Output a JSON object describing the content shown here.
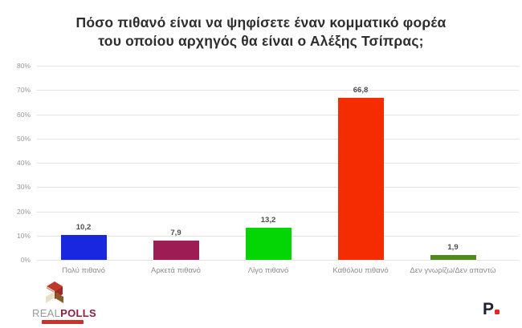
{
  "title_lines": [
    "Πόσο πιθανό είναι να ψηφίσετε έναν κομματικό φορέα",
    "του οποίου αρχηγός θα είναι ο Αλέξης Τσίπρας;"
  ],
  "chart_data": {
    "type": "bar",
    "title": "Πόσο πιθανό είναι να ψηφίσετε έναν κομματικό φορέα του οποίου αρχηγός θα είναι ο Αλέξης Τσίπρας;",
    "categories": [
      "Πολύ πιθανό",
      "Αρκετά πιθανό",
      "Λίγο πιθανό",
      "Καθόλου πιθανό",
      "Δεν γνωρίζω/Δεν απαντώ"
    ],
    "values": [
      10.2,
      7.9,
      13.2,
      66.8,
      1.9
    ],
    "value_labels": [
      "10,2",
      "7,9",
      "13,2",
      "66,8",
      "1,9"
    ],
    "bar_colors": [
      "#1728df",
      "#9c1c53",
      "#04d504",
      "#f52b02",
      "#508a1e"
    ],
    "xlabel": "",
    "ylabel": "",
    "ylim": [
      0,
      80
    ],
    "ytick_labels": [
      "0%",
      "10%",
      "20%",
      "30%",
      "40%",
      "50%",
      "60%",
      "70%",
      "80%"
    ],
    "grid": true,
    "legend": false
  },
  "footer": {
    "brand_real": "REAL",
    "brand_polls": "POLLS",
    "publisher_letter": "P"
  },
  "colors": {
    "grid": "#e4e4e4",
    "tick_text": "#979797",
    "category_text": "#8c8c8c",
    "value_text": "#4d4d4d",
    "title_text": "#2d2d2d",
    "brand_red": "#c8332e",
    "brand_maroon": "#8f1f3c",
    "publisher_navy": "#1d2330",
    "publisher_dot": "#e12a23"
  }
}
